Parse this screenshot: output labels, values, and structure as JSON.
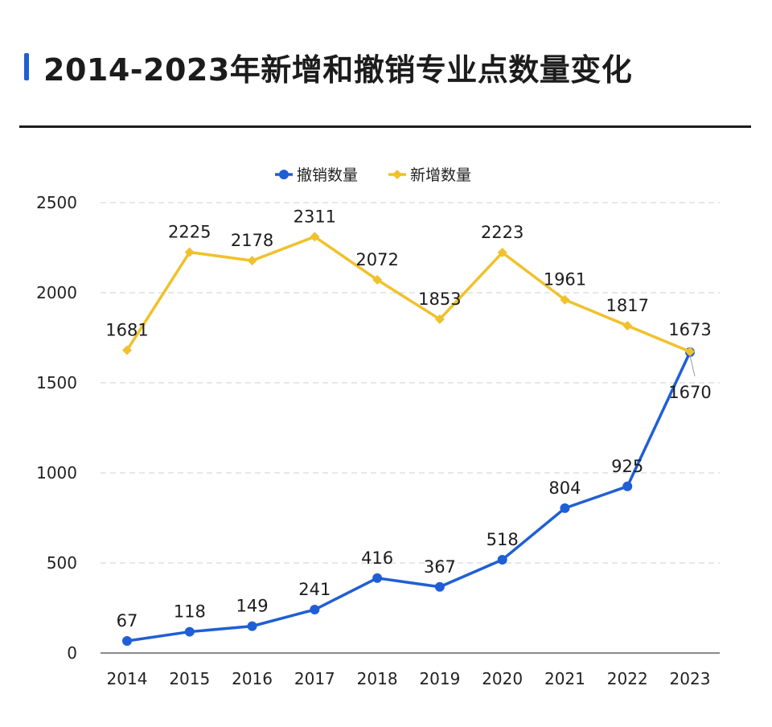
{
  "title": "2014-2023年新增和撤销专业点数量变化",
  "chart_data": {
    "type": "line",
    "title": "2014-2023年新增和撤销专业点数量变化",
    "categories": [
      "2014",
      "2015",
      "2016",
      "2017",
      "2018",
      "2019",
      "2020",
      "2021",
      "2022",
      "2023"
    ],
    "series": [
      {
        "name": "撤销数量",
        "color": "#1f5fd6",
        "values": [
          67,
          118,
          149,
          241,
          416,
          367,
          518,
          804,
          925,
          1670
        ]
      },
      {
        "name": "新增数量",
        "color": "#f0c12b",
        "values": [
          1681,
          2225,
          2178,
          2311,
          2072,
          1853,
          2223,
          1961,
          1817,
          1673
        ]
      }
    ],
    "ylim": [
      0,
      2500
    ],
    "yticks": [
      0,
      500,
      1000,
      1500,
      2000,
      2500
    ],
    "grid": true,
    "legend": "top-center"
  }
}
